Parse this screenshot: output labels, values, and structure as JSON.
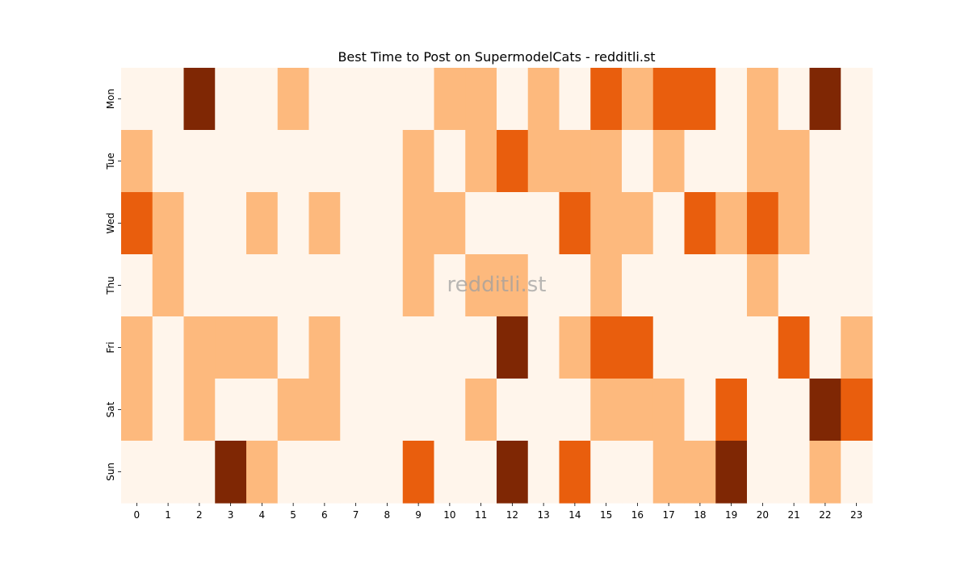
{
  "chart_data": {
    "type": "heatmap",
    "title": "Best Time to Post on SupermodelCats - redditli.st",
    "watermark": "redditli.st",
    "x_categories": [
      "0",
      "1",
      "2",
      "3",
      "4",
      "5",
      "6",
      "7",
      "8",
      "9",
      "10",
      "11",
      "12",
      "13",
      "14",
      "15",
      "16",
      "17",
      "18",
      "19",
      "20",
      "21",
      "22",
      "23"
    ],
    "y_categories": [
      "Mon",
      "Tue",
      "Wed",
      "Thu",
      "Fri",
      "Sat",
      "Sun"
    ],
    "values": [
      [
        0,
        0,
        3,
        0,
        0,
        1,
        0,
        0,
        0,
        0,
        1,
        1,
        0,
        1,
        0,
        2,
        1,
        2,
        2,
        0,
        1,
        0,
        3,
        0
      ],
      [
        1,
        0,
        0,
        0,
        0,
        0,
        0,
        0,
        0,
        1,
        0,
        1,
        2,
        1,
        1,
        1,
        0,
        1,
        0,
        0,
        1,
        1,
        0,
        0
      ],
      [
        2,
        1,
        0,
        0,
        1,
        0,
        1,
        0,
        0,
        1,
        1,
        0,
        0,
        0,
        2,
        1,
        1,
        0,
        2,
        1,
        2,
        1,
        0,
        0
      ],
      [
        0,
        1,
        0,
        0,
        0,
        0,
        0,
        0,
        0,
        1,
        0,
        1,
        1,
        0,
        0,
        1,
        0,
        0,
        0,
        0,
        1,
        0,
        0,
        0
      ],
      [
        1,
        0,
        1,
        1,
        1,
        0,
        1,
        0,
        0,
        0,
        0,
        0,
        3,
        0,
        1,
        2,
        2,
        0,
        0,
        0,
        0,
        2,
        0,
        1
      ],
      [
        1,
        0,
        1,
        0,
        0,
        1,
        1,
        0,
        0,
        0,
        0,
        1,
        0,
        0,
        0,
        1,
        1,
        1,
        0,
        2,
        0,
        0,
        3,
        2
      ],
      [
        0,
        0,
        0,
        3,
        1,
        0,
        0,
        0,
        0,
        2,
        0,
        0,
        3,
        0,
        2,
        0,
        0,
        1,
        1,
        3,
        0,
        0,
        1,
        0
      ]
    ],
    "colors": [
      "#fff5eb",
      "#fdb97d",
      "#e95e0d",
      "#7f2704"
    ],
    "colorbar": false,
    "grid": false
  }
}
